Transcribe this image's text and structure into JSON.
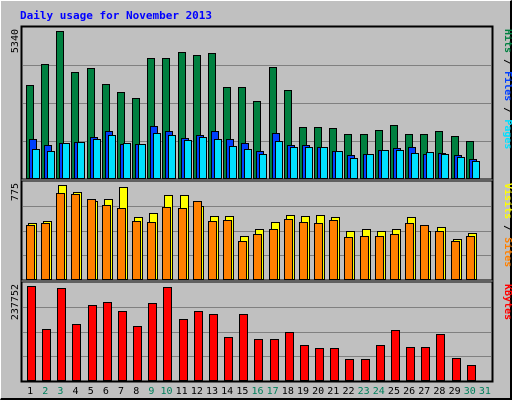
{
  "chart_data": {
    "type": "bar",
    "title": "Daily usage for November 2013",
    "categories": [
      "1",
      "2",
      "3",
      "4",
      "5",
      "6",
      "7",
      "8",
      "9",
      "10",
      "11",
      "12",
      "13",
      "14",
      "15",
      "16",
      "17",
      "18",
      "19",
      "20",
      "21",
      "22",
      "23",
      "24",
      "25",
      "26",
      "27",
      "28",
      "29",
      "30",
      "31"
    ],
    "weekend_days": [
      "2",
      "3",
      "9",
      "10",
      "16",
      "17",
      "23",
      "24",
      "30",
      "31"
    ],
    "colors": {
      "hits": "#008040",
      "files": "#0040ff",
      "pages": "#00e0ff",
      "visits": "#ffff00",
      "sites": "#ff8000",
      "kbytes": "#ff0000",
      "weekday_label": "#000000",
      "weekend_label": "#00805c"
    },
    "panels": [
      {
        "id": "hits-files-pages",
        "max_label": "5340",
        "ylim": [
          0,
          5340
        ],
        "series": [
          {
            "name": "Hits",
            "key": "hits",
            "values": [
              3380,
              4160,
              5340,
              3870,
              4020,
              3410,
              3130,
              2910,
              4350,
              4370,
              4580,
              4480,
              4550,
              3310,
              3310,
              2810,
              4030,
              3210,
              1890,
              1890,
              1840,
              1630,
              1630,
              1770,
              1940,
              1630,
              1630,
              1740,
              1560,
              1380,
              0
            ]
          },
          {
            "name": "Files",
            "key": "files",
            "values": [
              1450,
              1230,
              1310,
              1330,
              1520,
              1720,
              1270,
              1250,
              1900,
              1720,
              1480,
              1590,
              1740,
              1460,
              1310,
              1020,
              1650,
              1210,
              1210,
              1150,
              1000,
              870,
              900,
              1040,
              1110,
              1150,
              910,
              950,
              880,
              720,
              0
            ]
          },
          {
            "name": "Pages",
            "key": "pages",
            "values": [
              1080,
              1000,
              1310,
              1350,
              1450,
              1590,
              1300,
              1250,
              1650,
              1580,
              1410,
              1510,
              1460,
              1180,
              1070,
              920,
              1380,
              1170,
              1170,
              1150,
              1010,
              770,
              910,
              1030,
              1040,
              930,
              990,
              910,
              800,
              640,
              0
            ]
          }
        ],
        "right_label": [
          {
            "text": "Pages",
            "color": "#00e0ff"
          },
          {
            "text": " / ",
            "color": "#000000"
          },
          {
            "text": "Files",
            "color": "#0040ff"
          },
          {
            "text": " / ",
            "color": "#000000"
          },
          {
            "text": "Hits",
            "color": "#008040"
          }
        ]
      },
      {
        "id": "visits-sites",
        "max_label": "775",
        "ylim": [
          0,
          775
        ],
        "series": [
          {
            "name": "Visits",
            "key": "visits",
            "values": [
              465,
              480,
              775,
              720,
              645,
              660,
              760,
              515,
              545,
              690,
              690,
              605,
              520,
              520,
              360,
              415,
              475,
              530,
              520,
              530,
              510,
              400,
              415,
              400,
              415,
              510,
              400,
              435,
              335,
              380,
              0
            ]
          },
          {
            "name": "Sites",
            "key": "sites",
            "values": [
              450,
              465,
              710,
              705,
              660,
              615,
              590,
              480,
              475,
              595,
              585,
              645,
              485,
              490,
              320,
              375,
              415,
              495,
              470,
              465,
              490,
              350,
              360,
              360,
              375,
              465,
              450,
              400,
              315,
              355,
              0
            ]
          }
        ],
        "right_label": [
          {
            "text": "Sites",
            "color": "#ff8000"
          },
          {
            "text": " / ",
            "color": "#000000"
          },
          {
            "text": "Visits",
            "color": "#ffff00"
          }
        ]
      },
      {
        "id": "kbytes",
        "max_label": "237752",
        "ylim": [
          0,
          237752
        ],
        "series": [
          {
            "name": "KBytes",
            "key": "kbytes",
            "values": [
              237750,
              130000,
              233000,
              143000,
              190000,
              197000,
              175000,
              138000,
              194000,
              234000,
              156000,
              176000,
              168000,
              111000,
              168000,
              105000,
              105000,
              122000,
              90000,
              82000,
              82000,
              55000,
              55000,
              90000,
              128000,
              84000,
              84000,
              118000,
              57000,
              40000,
              0
            ]
          }
        ],
        "right_label": [
          {
            "text": "KBytes",
            "color": "#ff0000"
          }
        ]
      }
    ]
  }
}
